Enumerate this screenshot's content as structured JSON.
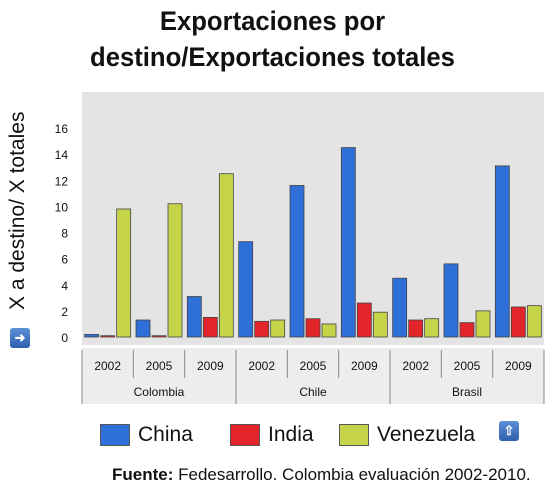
{
  "title_line1": "Exportaciones por",
  "title_line2": "destino/Exportaciones totales",
  "source_label": "Fuente:",
  "source_text": "Fedesarrollo. Colombia evaluación 2002-2010.",
  "colors": {
    "China": "#2f6fd8",
    "India": "#e3242b",
    "Venezuela": "#c6d44a",
    "panel": "#e4e4e4"
  },
  "icons": {
    "left": "arrow-right-icon",
    "right": "arrow-up-icon"
  },
  "chart_data": {
    "type": "bar",
    "ylabel": "X a destino/ X totales",
    "ylim": [
      0,
      16
    ],
    "yticks": [
      0,
      2,
      4,
      6,
      8,
      10,
      12,
      14,
      16
    ],
    "grid": false,
    "legend_position": "bottom",
    "categories": [
      "2002",
      "2005",
      "2009",
      "2002",
      "2005",
      "2009",
      "2002",
      "2005",
      "2009"
    ],
    "groups": [
      {
        "label": "Colombia",
        "categories": [
          "2002",
          "2005",
          "2009"
        ]
      },
      {
        "label": "Chile",
        "categories": [
          "2002",
          "2005",
          "2009"
        ]
      },
      {
        "label": "Brasil",
        "categories": [
          "2002",
          "2005",
          "2009"
        ]
      }
    ],
    "series": [
      {
        "name": "China",
        "values": [
          0.2,
          1.3,
          3.1,
          7.3,
          11.6,
          14.5,
          4.5,
          5.6,
          13.1
        ]
      },
      {
        "name": "India",
        "values": [
          0.1,
          0.1,
          1.5,
          1.2,
          1.4,
          2.6,
          1.3,
          1.1,
          2.3
        ]
      },
      {
        "name": "Venezuela",
        "values": [
          9.8,
          10.2,
          12.5,
          1.3,
          1.0,
          1.9,
          1.4,
          2.0,
          2.4
        ]
      }
    ]
  }
}
